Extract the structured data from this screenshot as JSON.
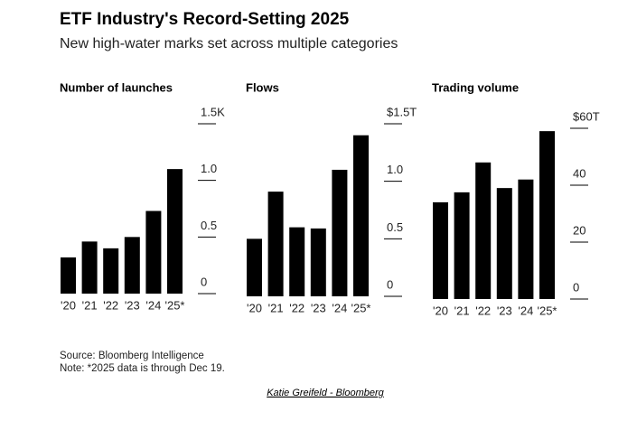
{
  "header": {
    "title": "ETF Industry's Record-Setting 2025",
    "subtitle": "New high-water marks set across multiple categories"
  },
  "chart_data": [
    {
      "type": "bar",
      "title": "Number of launches",
      "categories": [
        "'20",
        "'21",
        "'22",
        "'23",
        "'24",
        "'25*"
      ],
      "values": [
        0.32,
        0.46,
        0.4,
        0.5,
        0.73,
        1.1
      ],
      "color": "#000000",
      "ylim": [
        0,
        1.5
      ],
      "yticks": [
        0,
        0.5,
        {
          "value": 1,
          "label": "1.0"
        },
        {
          "value": 1.5,
          "label": "1.5K"
        }
      ]
    },
    {
      "type": "bar",
      "title": "Flows",
      "categories": [
        "'20",
        "'21",
        "'22",
        "'23",
        "'24",
        "'25*"
      ],
      "values": [
        0.5,
        0.91,
        0.6,
        0.59,
        1.1,
        1.4
      ],
      "color": "#000000",
      "ylim": [
        0,
        1.5
      ],
      "yticks": [
        0,
        0.5,
        {
          "value": 1,
          "label": "1.0"
        },
        {
          "value": 1.5,
          "label": "$1.5T"
        }
      ]
    },
    {
      "type": "bar",
      "title": "Trading volume",
      "categories": [
        "'20",
        "'21",
        "'22",
        "'23",
        "'24",
        "'25*"
      ],
      "values": [
        34,
        37.5,
        48,
        39,
        42,
        59
      ],
      "color": "#000000",
      "ylim": [
        0,
        60
      ],
      "yticks": [
        0,
        20,
        40,
        {
          "value": 60,
          "label": "$60T"
        }
      ]
    }
  ],
  "footer": {
    "source": "Source: Bloomberg Intelligence",
    "note": "Note: *2025 data is through Dec 19.",
    "credit": "Katie Greifeld - Bloomberg"
  }
}
